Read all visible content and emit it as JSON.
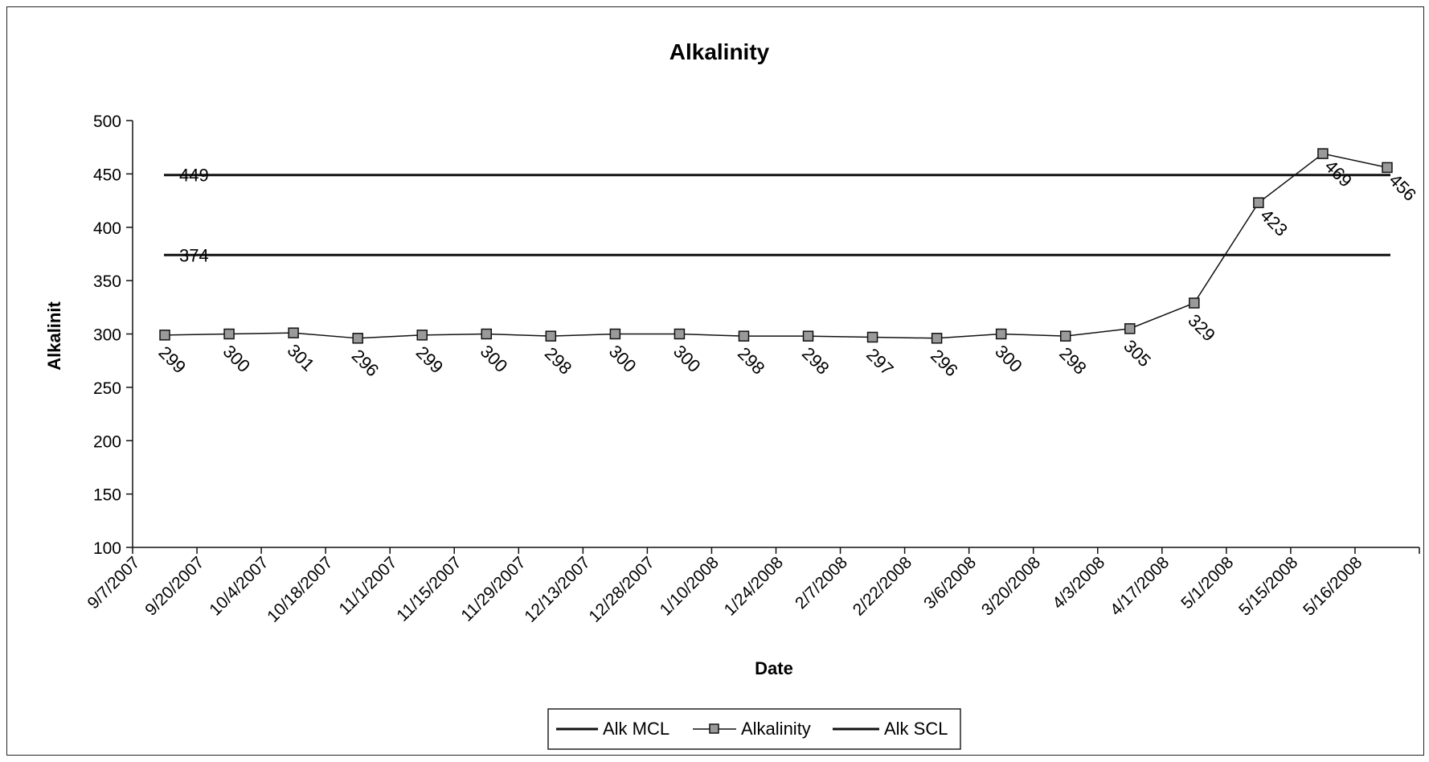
{
  "chart_data": {
    "type": "line",
    "title": "Alkalinity",
    "xlabel": "Date",
    "ylabel": "Alkalinit",
    "ylim": [
      100,
      500
    ],
    "yticks": [
      100,
      150,
      200,
      250,
      300,
      350,
      400,
      450,
      500
    ],
    "x_tick_labels": [
      "9/7/2007",
      "9/20/2007",
      "10/4/2007",
      "10/18/2007",
      "11/1/2007",
      "11/15/2007",
      "11/29/2007",
      "12/13/2007",
      "12/28/2007",
      "1/10/2008",
      "1/24/2008",
      "2/7/2008",
      "2/22/2008",
      "3/6/2008",
      "3/20/2008",
      "4/3/2008",
      "4/17/2008",
      "5/1/2008",
      "5/15/2008",
      "5/16/2008"
    ],
    "grid": false,
    "legend_position": "bottom",
    "series": [
      {
        "name": "Alk MCL",
        "style": "line",
        "values": [
          449
        ],
        "data_label": "449",
        "color": "#111111"
      },
      {
        "name": "Alkalinity",
        "style": "line-marker",
        "values": [
          299,
          300,
          301,
          296,
          299,
          300,
          298,
          300,
          300,
          298,
          298,
          297,
          296,
          300,
          298,
          305,
          329,
          423,
          469,
          456
        ],
        "color": "#111111"
      },
      {
        "name": "Alk SCL",
        "style": "line",
        "values": [
          374
        ],
        "data_label": "374",
        "color": "#111111"
      }
    ]
  }
}
